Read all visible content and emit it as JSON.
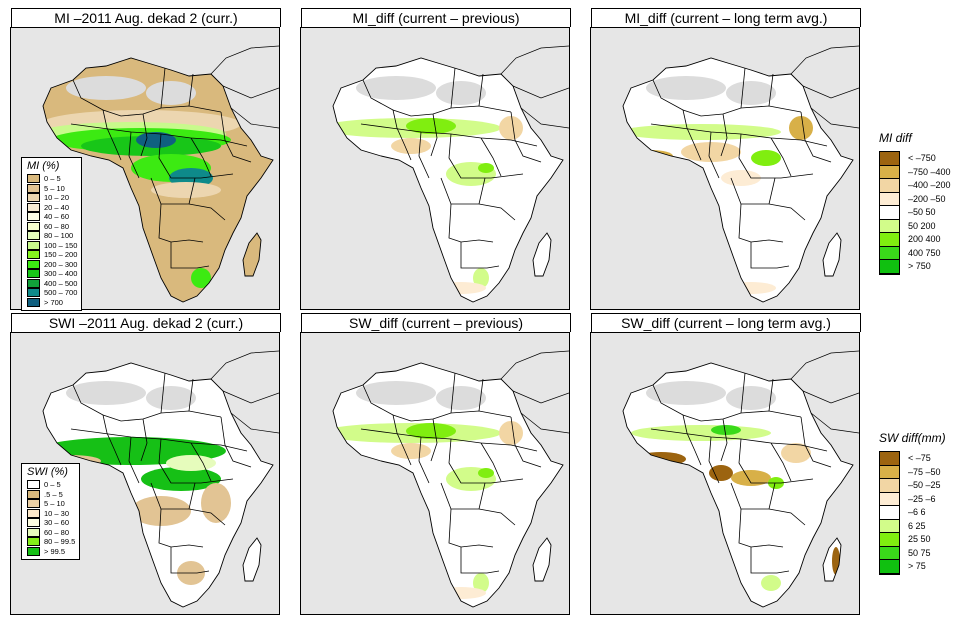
{
  "panels": [
    {
      "id": "mi-curr",
      "title": "MI –2011 Aug. dekad 2 (curr.)",
      "scheme": "mi"
    },
    {
      "id": "mi-diff-prev",
      "title": "MI_diff (current – previous)",
      "scheme": "diffprev"
    },
    {
      "id": "mi-diff-lta",
      "title": "MI_diff (current – long term avg.)",
      "scheme": "difflta"
    },
    {
      "id": "swi-curr",
      "title": "SWI –2011 Aug. dekad 2 (curr.)",
      "scheme": "swi"
    },
    {
      "id": "sw-diff-prev",
      "title": "SW_diff (current – previous)",
      "scheme": "diffprev"
    },
    {
      "id": "sw-diff-lta",
      "title": "SW_diff (current – long term avg.)",
      "scheme": "difflta2"
    }
  ],
  "legends": {
    "mi": {
      "title": "MI (%)",
      "items": [
        {
          "label": "0 – 5",
          "color": "#d9b97d"
        },
        {
          "label": "5 – 10",
          "color": "#e2c494"
        },
        {
          "label": "10 – 20",
          "color": "#ecd6b0"
        },
        {
          "label": "20 – 40",
          "color": "#f7ead2"
        },
        {
          "label": "40 – 60",
          "color": "#fdfde6"
        },
        {
          "label": "60 – 80",
          "color": "#f6fdcd"
        },
        {
          "label": "80 – 100",
          "color": "#e3fcbc"
        },
        {
          "label": "100 – 150",
          "color": "#c8fa8c"
        },
        {
          "label": "150 – 200",
          "color": "#86f520"
        },
        {
          "label": "200 – 300",
          "color": "#3cea12"
        },
        {
          "label": "300 – 400",
          "color": "#18c618"
        },
        {
          "label": "400 – 500",
          "color": "#11a03a"
        },
        {
          "label": "500 – 700",
          "color": "#0e8a8a"
        },
        {
          "label": "> 700",
          "color": "#106080"
        }
      ]
    },
    "swi": {
      "title": "SWI (%)",
      "items": [
        {
          "label": "0 – 5",
          "color": "#ffffff"
        },
        {
          "label": ".5 – 5",
          "color": "#d9b97d"
        },
        {
          "label": "5 – 10",
          "color": "#ecd0a4"
        },
        {
          "label": "10 – 30",
          "color": "#fde8c8"
        },
        {
          "label": "30 – 60",
          "color": "#fdfde0"
        },
        {
          "label": "60 – 80",
          "color": "#e6fcbc"
        },
        {
          "label": "80 – 99.5",
          "color": "#84f01a"
        },
        {
          "label": "> 99.5",
          "color": "#16c016"
        }
      ]
    },
    "mi_diff": {
      "title": "MI diff",
      "items": [
        {
          "label": "< –750",
          "color": "#9c6410"
        },
        {
          "label": "–750 –400",
          "color": "#d8b048"
        },
        {
          "label": "–400 –200",
          "color": "#f2d6a4"
        },
        {
          "label": "–200 –50",
          "color": "#fdecd4"
        },
        {
          "label": "–50  50",
          "color": "#ffffff"
        },
        {
          "label": " 50  200",
          "color": "#d2fc8a"
        },
        {
          "label": "200  400",
          "color": "#80ee10"
        },
        {
          "label": "400  750",
          "color": "#3ada1a"
        },
        {
          "label": "> 750",
          "color": "#10c010"
        }
      ]
    },
    "sw_diff": {
      "title": "SW diff(mm)",
      "items": [
        {
          "label": "< –75",
          "color": "#9c6410"
        },
        {
          "label": "–75 –50",
          "color": "#d8b048"
        },
        {
          "label": "–50 –25",
          "color": "#f2d6a4"
        },
        {
          "label": "–25  –6",
          "color": "#fdecd4"
        },
        {
          "label": "–6  6",
          "color": "#ffffff"
        },
        {
          "label": " 6  25",
          "color": "#d2fc8a"
        },
        {
          "label": "25  50",
          "color": "#80ee10"
        },
        {
          "label": "50  75",
          "color": "#3ada1a"
        },
        {
          "label": "> 75",
          "color": "#10c010"
        }
      ]
    }
  },
  "colors": {
    "ocean": "#e6e6e6",
    "nodata": "#dcdcdc",
    "border": "#000000"
  }
}
